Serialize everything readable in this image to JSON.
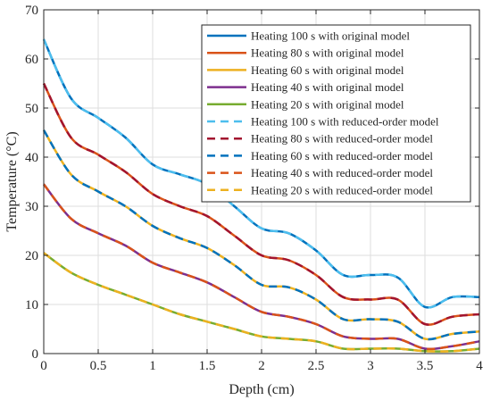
{
  "chart_data": {
    "type": "line",
    "title": "",
    "xlabel": "Depth (cm)",
    "ylabel": "Temperature (°C)",
    "xlim": [
      0,
      4
    ],
    "ylim": [
      0,
      70
    ],
    "xticks": [
      0,
      0.5,
      1,
      1.5,
      2,
      2.5,
      3,
      3.5,
      4
    ],
    "xtick_labels": [
      "0",
      "0.5",
      "1",
      "1.5",
      "2",
      "2.5",
      "3",
      "3.5",
      "4"
    ],
    "yticks": [
      0,
      10,
      20,
      30,
      40,
      50,
      60,
      70
    ],
    "ytick_labels": [
      "0",
      "10",
      "20",
      "30",
      "40",
      "50",
      "60",
      "70"
    ],
    "grid": true,
    "legend_position": "top-right",
    "x": [
      0,
      0.25,
      0.5,
      0.75,
      1,
      1.25,
      1.5,
      1.75,
      2,
      2.25,
      2.5,
      2.75,
      3,
      3.25,
      3.5,
      3.75,
      4
    ],
    "series": [
      {
        "name": "Heating 100 s with original model",
        "color": "#0072BD",
        "dash": false,
        "values": [
          64.0,
          52.0,
          48.0,
          44.0,
          38.5,
          36.5,
          34.5,
          30.0,
          25.5,
          24.5,
          21.0,
          16.0,
          16.0,
          15.5,
          9.5,
          11.5,
          11.5
        ]
      },
      {
        "name": "Heating 80 s with original model",
        "color": "#D95319",
        "dash": false,
        "values": [
          55.0,
          44.0,
          40.5,
          37.0,
          32.5,
          30.0,
          28.0,
          24.0,
          20.0,
          19.0,
          16.0,
          11.5,
          11.0,
          11.0,
          6.0,
          7.5,
          8.0
        ]
      },
      {
        "name": "Heating 60 s with original model",
        "color": "#EDB120",
        "dash": false,
        "values": [
          45.5,
          36.5,
          33.0,
          30.0,
          26.0,
          23.5,
          21.5,
          18.0,
          14.0,
          13.5,
          11.0,
          7.0,
          7.0,
          6.5,
          3.0,
          4.0,
          4.5
        ]
      },
      {
        "name": "Heating 40 s with original model",
        "color": "#7E2F8E",
        "dash": false,
        "values": [
          34.5,
          27.5,
          24.5,
          22.0,
          18.5,
          16.5,
          14.5,
          11.5,
          8.5,
          7.5,
          6.0,
          3.5,
          3.0,
          3.0,
          1.0,
          1.5,
          2.5
        ]
      },
      {
        "name": "Heating 20 s with original model",
        "color": "#77AC30",
        "dash": false,
        "values": [
          20.5,
          16.5,
          14.0,
          12.0,
          10.0,
          8.0,
          6.5,
          5.0,
          3.5,
          3.0,
          2.5,
          1.0,
          1.0,
          1.0,
          0.5,
          0.5,
          1.0
        ]
      },
      {
        "name": "Heating 100 s with reduced-order model",
        "color": "#4DBEEE",
        "dash": true,
        "values": [
          64.0,
          52.0,
          48.0,
          44.0,
          38.5,
          36.5,
          34.5,
          30.0,
          25.5,
          24.5,
          21.0,
          16.0,
          16.0,
          15.5,
          9.5,
          11.5,
          11.5
        ]
      },
      {
        "name": "Heating 80 s with reduced-order model",
        "color": "#A2142F",
        "dash": true,
        "values": [
          55.0,
          44.0,
          40.5,
          37.0,
          32.5,
          30.0,
          28.0,
          24.0,
          20.0,
          19.0,
          16.0,
          11.5,
          11.0,
          11.0,
          6.0,
          7.5,
          8.0
        ]
      },
      {
        "name": "Heating 60 s with reduced-order model",
        "color": "#0072BD",
        "dash": true,
        "values": [
          45.5,
          36.5,
          33.0,
          30.0,
          26.0,
          23.5,
          21.5,
          18.0,
          14.0,
          13.5,
          11.0,
          7.0,
          7.0,
          6.5,
          3.0,
          4.0,
          4.5
        ]
      },
      {
        "name": "Heating 40 s with reduced-order model",
        "color": "#D95319",
        "dash": true,
        "values": [
          34.5,
          27.5,
          24.5,
          22.0,
          18.5,
          16.5,
          14.5,
          11.5,
          8.5,
          7.5,
          6.0,
          3.5,
          3.0,
          3.0,
          1.0,
          1.5,
          2.5
        ]
      },
      {
        "name": "Heating 20 s with reduced-order model",
        "color": "#EDB120",
        "dash": true,
        "values": [
          20.5,
          16.5,
          14.0,
          12.0,
          10.0,
          8.0,
          6.5,
          5.0,
          3.5,
          3.0,
          2.5,
          1.0,
          1.0,
          1.0,
          0.5,
          0.5,
          1.0
        ]
      }
    ]
  }
}
